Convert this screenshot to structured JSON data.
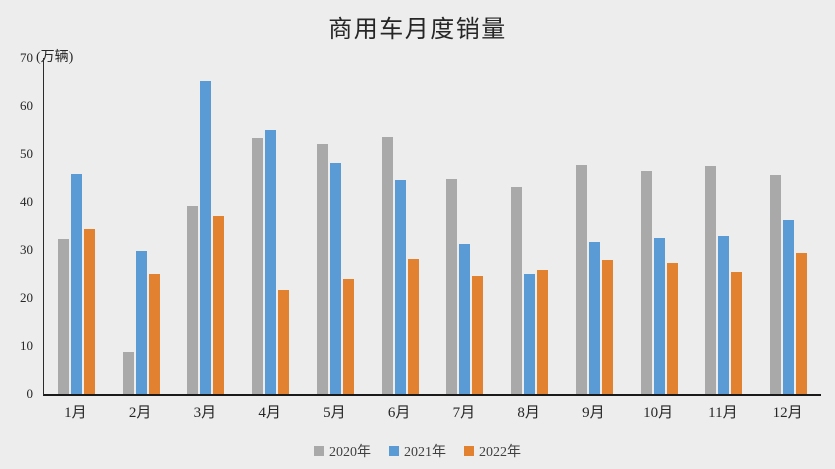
{
  "page": {
    "background": "#EDEDED"
  },
  "chart_data": {
    "type": "bar",
    "title": "商用车月度销量",
    "unit_label": "(万辆)",
    "categories": [
      "1月",
      "2月",
      "3月",
      "4月",
      "5月",
      "6月",
      "7月",
      "8月",
      "9月",
      "10月",
      "11月",
      "12月"
    ],
    "series": [
      {
        "name": "2020年",
        "color": "#A9A9A9",
        "values": [
          32.2,
          8.8,
          39.1,
          53.4,
          52.0,
          53.6,
          44.7,
          43.1,
          47.7,
          46.4,
          47.4,
          45.7
        ]
      },
      {
        "name": "2021年",
        "color": "#5B9BD5",
        "values": [
          45.9,
          29.7,
          65.3,
          55.0,
          48.1,
          44.6,
          31.2,
          24.9,
          31.7,
          32.6,
          33.0,
          36.3
        ]
      },
      {
        "name": "2022年",
        "color": "#E2812F",
        "values": [
          34.4,
          25.0,
          37.0,
          21.6,
          23.9,
          28.1,
          24.6,
          25.9,
          28.0,
          27.3,
          25.5,
          29.3
        ]
      }
    ],
    "xlabel": "",
    "ylabel": "",
    "ylim": [
      0,
      70
    ],
    "ytick_step": 10,
    "yticks": [
      0,
      10,
      20,
      30,
      40,
      50,
      60,
      70
    ],
    "grid": false,
    "legend_position": "bottom",
    "axis_color": "#262626"
  }
}
